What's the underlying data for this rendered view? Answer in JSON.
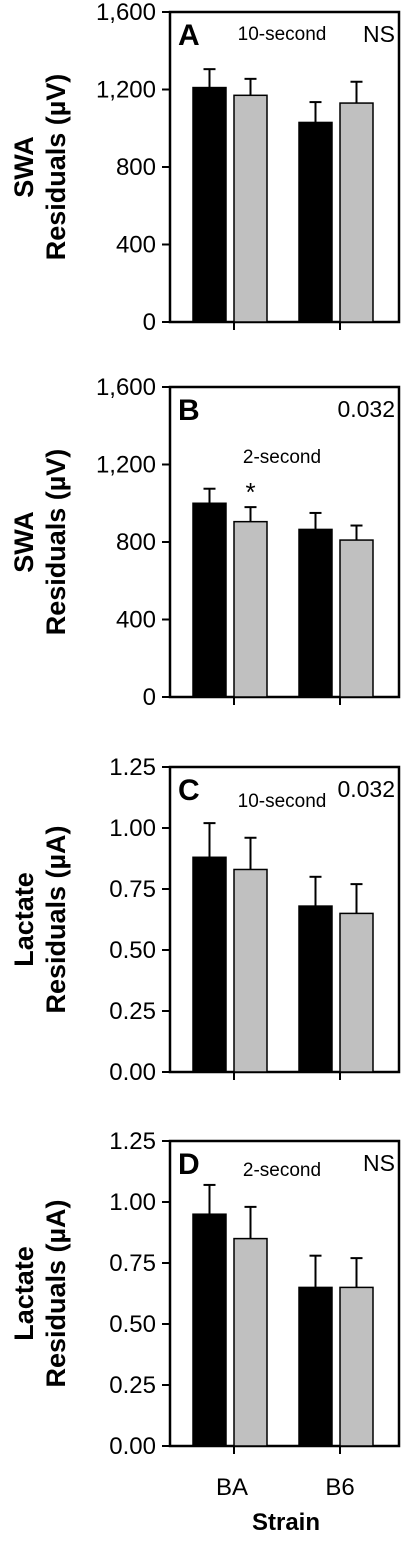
{
  "colors": {
    "series_1": "#000000",
    "series_2": "#c0c0c0",
    "axis": "#000000"
  },
  "chart_data": [
    {
      "type": "bar",
      "panel_letter": "A",
      "subtitle": "10-second",
      "stat": "NS",
      "ylabel": [
        "SWA",
        "Residuals (µV)"
      ],
      "ylim": [
        0,
        1600
      ],
      "ytick_labels": [
        "0",
        "400",
        "800",
        "1,200",
        "1,600"
      ],
      "ytick_values": [
        0,
        400,
        800,
        1200,
        1600
      ],
      "categories": [
        "BA",
        "B6"
      ],
      "series": [
        {
          "values": [
            1210,
            1030
          ],
          "errors": [
            95,
            105
          ]
        },
        {
          "values": [
            1170,
            1130
          ],
          "errors": [
            85,
            110
          ]
        }
      ],
      "annotations": []
    },
    {
      "type": "bar",
      "panel_letter": "B",
      "subtitle": "2-second",
      "stat": "0.032",
      "ylabel": [
        "SWA",
        "Residuals (µV)"
      ],
      "ylim": [
        0,
        1600
      ],
      "ytick_labels": [
        "0",
        "400",
        "800",
        "1,200",
        "1,600"
      ],
      "ytick_values": [
        0,
        400,
        800,
        1200,
        1600
      ],
      "categories": [
        "BA",
        "B6"
      ],
      "series": [
        {
          "values": [
            1000,
            865
          ],
          "errors": [
            75,
            85
          ]
        },
        {
          "values": [
            905,
            810
          ],
          "errors": [
            75,
            75
          ]
        }
      ],
      "annotations": [
        {
          "text": "*",
          "series": 1,
          "category": 0
        }
      ]
    },
    {
      "type": "bar",
      "panel_letter": "C",
      "subtitle": "10-second",
      "stat": "0.032",
      "ylabel": [
        "Lactate",
        "Residuals (µA)"
      ],
      "ylim": [
        0,
        1.25
      ],
      "ytick_labels": [
        "0.00",
        "0.25",
        "0.50",
        "0.75",
        "1.00",
        "1.25"
      ],
      "ytick_values": [
        0,
        0.25,
        0.5,
        0.75,
        1.0,
        1.25
      ],
      "categories": [
        "BA",
        "B6"
      ],
      "series": [
        {
          "values": [
            0.88,
            0.68
          ],
          "errors": [
            0.14,
            0.12
          ]
        },
        {
          "values": [
            0.83,
            0.65
          ],
          "errors": [
            0.13,
            0.12
          ]
        }
      ],
      "annotations": []
    },
    {
      "type": "bar",
      "panel_letter": "D",
      "subtitle": "2-second",
      "stat": "NS",
      "ylabel": [
        "Lactate",
        "Residuals (µA)"
      ],
      "ylim": [
        0,
        1.25
      ],
      "ytick_labels": [
        "0.00",
        "0.25",
        "0.50",
        "0.75",
        "1.00",
        "1.25"
      ],
      "ytick_values": [
        0,
        0.25,
        0.5,
        0.75,
        1.0,
        1.25
      ],
      "categories": [
        "BA",
        "B6"
      ],
      "series": [
        {
          "values": [
            0.95,
            0.65
          ],
          "errors": [
            0.12,
            0.13
          ]
        },
        {
          "values": [
            0.85,
            0.65
          ],
          "errors": [
            0.13,
            0.12
          ]
        }
      ],
      "annotations": []
    }
  ],
  "xlabel": "Strain"
}
